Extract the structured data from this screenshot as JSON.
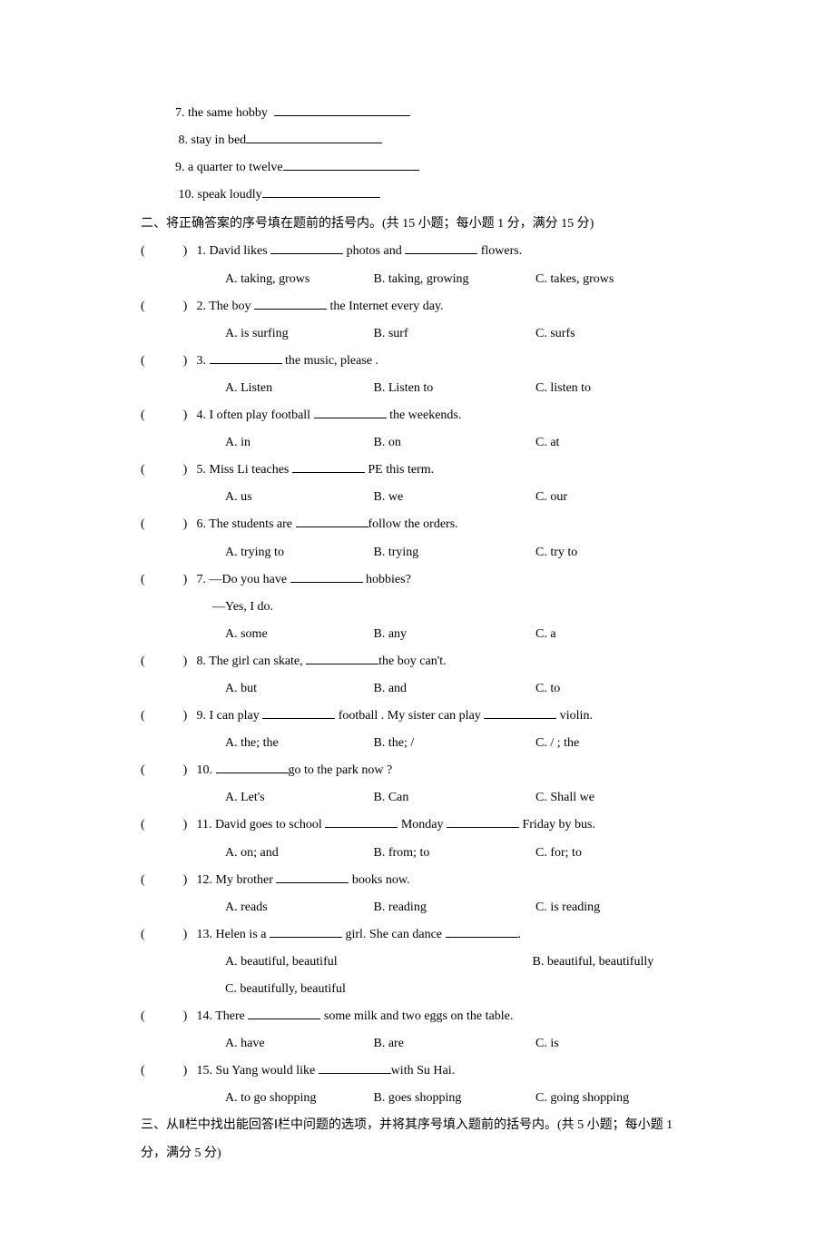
{
  "fill": {
    "items": [
      {
        "num": "7.",
        "label": "the same hobby"
      },
      {
        "num": "8.",
        "label": "stay in bed"
      },
      {
        "num": "9.",
        "label": "a quarter to twelve"
      },
      {
        "num": "10.",
        "label": "speak loudly"
      }
    ]
  },
  "section2": {
    "header": "二、将正确答案的序号填在题前的括号内。(共 15 小题；每小题 1 分，满分 15 分)",
    "paren": "(　　　)",
    "questions": [
      {
        "num": "1.",
        "parts": [
          "David likes ",
          " photos and ",
          " flowers."
        ],
        "opts": [
          "A. taking, grows",
          "B. taking, growing",
          "C. takes, grows"
        ]
      },
      {
        "num": "2.",
        "parts": [
          "The boy ",
          " the Internet every day."
        ],
        "opts": [
          "A. is surfing",
          "B. surf",
          "C. surfs"
        ]
      },
      {
        "num": "3.",
        "parts": [
          "",
          " the music, please ."
        ],
        "opts": [
          "A. Listen",
          "B. Listen to",
          "C. listen to"
        ]
      },
      {
        "num": "4.",
        "parts": [
          "I often play football ",
          " the weekends."
        ],
        "opts": [
          "A. in",
          "B. on",
          "C. at"
        ]
      },
      {
        "num": "5.",
        "parts": [
          "Miss Li teaches ",
          " PE this term."
        ],
        "opts": [
          "A. us",
          "B. we",
          "C. our"
        ]
      },
      {
        "num": "6.",
        "parts": [
          "The students are ",
          "follow the orders."
        ],
        "opts": [
          "A. trying to",
          "B. trying",
          "C. try to"
        ]
      },
      {
        "num": "7.",
        "parts": [
          "—Do you have ",
          " hobbies?"
        ],
        "extra": "—Yes, I do.",
        "opts": [
          "A. some",
          "B. any",
          "C. a"
        ]
      },
      {
        "num": "8.",
        "parts": [
          "The girl can skate, ",
          "the boy can't."
        ],
        "opts": [
          "A. but",
          "B. and",
          "C. to"
        ]
      },
      {
        "num": "9.",
        "parts": [
          "I can play ",
          " football . My sister can play ",
          " violin."
        ],
        "opts": [
          "A. the; the",
          "B. the; /",
          "C. / ; the"
        ]
      },
      {
        "num": "10.",
        "parts": [
          "",
          "go to the park now ?"
        ],
        "opts": [
          "A. Let's",
          "B. Can",
          "C. Shall we"
        ]
      },
      {
        "num": "11.",
        "parts": [
          "David goes to school ",
          " Monday ",
          " Friday by bus."
        ],
        "opts": [
          "A. on; and",
          "B. from; to",
          "C. for; to"
        ]
      },
      {
        "num": "12.",
        "parts": [
          "My brother ",
          " books now."
        ],
        "opts": [
          "A. reads",
          "B. reading",
          "C. is reading"
        ]
      },
      {
        "num": "13.",
        "parts": [
          "Helen is a ",
          " girl. She can dance ",
          "."
        ],
        "opts2": [
          "A. beautiful, beautiful",
          "B. beautiful, beautifully"
        ],
        "opts2b": "C. beautifully, beautiful"
      },
      {
        "num": "14.",
        "parts": [
          "There ",
          " some milk and two eggs on the table."
        ],
        "opts": [
          "A. have",
          "B. are",
          "C.  is"
        ]
      },
      {
        "num": "15.",
        "parts": [
          "Su Yang would like ",
          "with Su Hai."
        ],
        "opts": [
          "A. to go shopping",
          "B. goes shopping",
          "C. going shopping"
        ]
      }
    ]
  },
  "section3": {
    "header": "三、从Ⅱ栏中找出能回答Ⅰ栏中问题的选项，并将其序号填入题前的括号内。(共 5 小题；每小题 1 分，满分 5 分)"
  }
}
